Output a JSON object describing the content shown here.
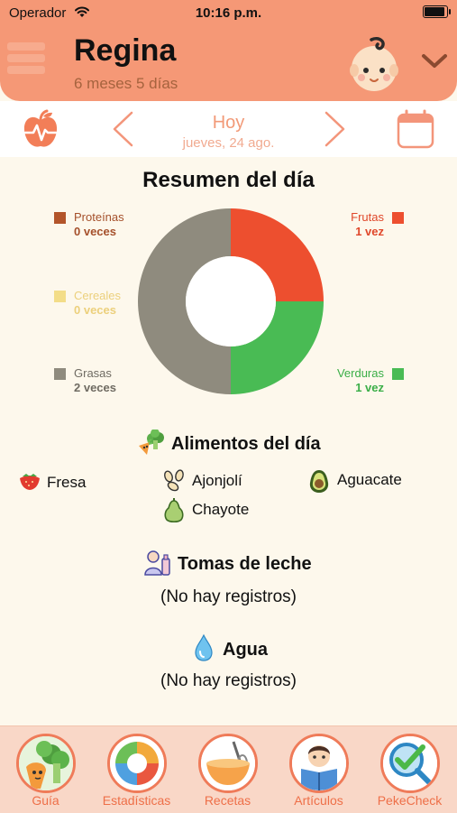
{
  "status": {
    "carrier": "Operador",
    "time": "10:16 p.m."
  },
  "header": {
    "name": "Regina",
    "age": "6 meses 5 días"
  },
  "date_nav": {
    "today": "Hoy",
    "date": "jueves, 24 ago."
  },
  "summary": {
    "title": "Resumen del día",
    "categories": [
      {
        "name": "Proteínas",
        "count": "0 veces",
        "value": 0,
        "color": "#b3552a",
        "text_color": "#a5502b"
      },
      {
        "name": "Cereales",
        "count": "0 veces",
        "value": 0,
        "color": "#f3dd88",
        "text_color": "#ecd07c"
      },
      {
        "name": "Grasas",
        "count": "2 veces",
        "value": 2,
        "color": "#8f8b7e",
        "text_color": "#6f6b62"
      },
      {
        "name": "Frutas",
        "count": "1 vez",
        "value": 1,
        "color": "#ed4f2f",
        "text_color": "#e0472a"
      },
      {
        "name": "Verduras",
        "count": "1 vez",
        "value": 1,
        "color": "#49bb54",
        "text_color": "#3aae47"
      }
    ]
  },
  "foods": {
    "title": "Alimentos del día",
    "items": [
      {
        "label": "Fresa",
        "icon": "strawberry-icon"
      },
      {
        "label": "Ajonjolí",
        "icon": "sesame-icon"
      },
      {
        "label": "Aguacate",
        "icon": "avocado-icon"
      },
      {
        "label": "Chayote",
        "icon": "chayote-icon"
      }
    ]
  },
  "milk": {
    "title": "Tomas de leche",
    "empty": "(No hay registros)"
  },
  "water": {
    "title": "Agua",
    "empty": "(No hay registros)"
  },
  "tabs": [
    {
      "label": "Guía",
      "icon": "broccoli-carrot-icon"
    },
    {
      "label": "Estadísticas",
      "icon": "pie-chart-icon"
    },
    {
      "label": "Recetas",
      "icon": "mixing-bowl-icon"
    },
    {
      "label": "Artículos",
      "icon": "reading-child-icon"
    },
    {
      "label": "PekeCheck",
      "icon": "magnifier-check-icon"
    }
  ]
}
